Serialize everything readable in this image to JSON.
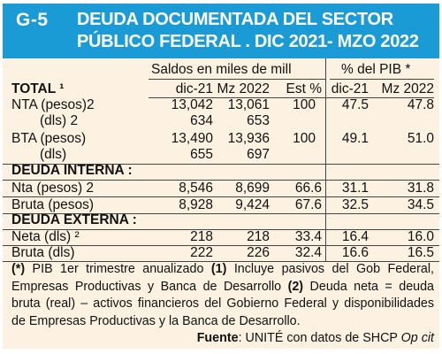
{
  "header": {
    "code": "G-5",
    "title_line1": "DEUDA DOCUMENTADA DEL SECTOR",
    "title_line2": "PÚBLICO FEDERAL . DIC 2021- MZO 2022"
  },
  "colgroups": {
    "saldos": "Saldos en miles de mill",
    "pib": "% del PIB *"
  },
  "columns": {
    "label": "TOTAL ¹",
    "dic": "dic-21",
    "mz": "Mz 2022",
    "est": "Est %",
    "pib_dic": "dic-21",
    "pib_mz": "Mz 2022"
  },
  "total_rows": [
    {
      "label": "NTA (pesos)2",
      "dic": "13,042",
      "mz": "13,061",
      "est": "100",
      "pib_dic": "47.5",
      "pib_mz": "47.8"
    },
    {
      "label": "(dls) 2",
      "dic": "634",
      "mz": "653",
      "est": "",
      "pib_dic": "",
      "pib_mz": ""
    },
    {
      "label": "BTA (pesos)",
      "dic": "13,490",
      "mz": "13,936",
      "est": "100",
      "pib_dic": "49.1",
      "pib_mz": "51.0"
    },
    {
      "label": "(dls)",
      "dic": "655",
      "mz": "697",
      "est": "",
      "pib_dic": "",
      "pib_mz": ""
    }
  ],
  "interna": {
    "title": "DEUDA INTERNA :",
    "rows": [
      {
        "label": "Nta (pesos) 2",
        "dic": "8,546",
        "mz": "8,699",
        "est": "66.6",
        "pib_dic": "31.1",
        "pib_mz": "31.8"
      },
      {
        "label": "Bruta (pesos)",
        "dic": "8,928",
        "mz": "9,424",
        "est": "67.6",
        "pib_dic": "32.5",
        "pib_mz": "34.5"
      }
    ]
  },
  "externa": {
    "title": "DEUDA EXTERNA :",
    "rows": [
      {
        "label": "Neta (dls) ²",
        "dic": "218",
        "mz": "218",
        "est": "33.4",
        "pib_dic": "16.4",
        "pib_mz": "16.0"
      },
      {
        "label": "Bruta (dls)",
        "dic": "222",
        "mz": "226",
        "est": "32.4",
        "pib_dic": "16.6",
        "pib_mz": "16.5"
      }
    ]
  },
  "notes": {
    "n1_mark": "(*)",
    "n1_text": " PIB 1er trimestre anualizado ",
    "n2_mark": "(1)",
    "n2_text": " Incluye pasivos del Gob Federal, Empresas Productivas y Banca de Desarrollo ",
    "n3_mark": "(2)",
    "n3_text": " Deuda neta = deuda bruta (real) – activos financieros del Gobierno Federal y disponibilidades de Empresas Productivas y la Banca de Desarrollo.",
    "source_label": "Fuente",
    "source_text": ": UNITÉ con datos de SHCP ",
    "source_italic": "Op cit"
  }
}
